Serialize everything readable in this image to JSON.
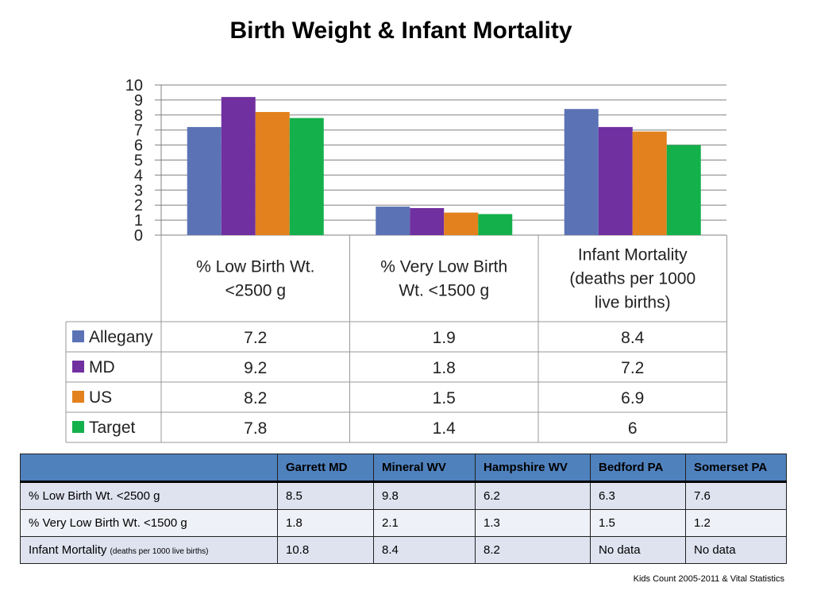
{
  "slide": {
    "title": "Birth Weight & Infant Mortality",
    "source": "Kids Count 2005-2011 & Vital Statistics"
  },
  "colors": {
    "Allegany": "#5b73b5",
    "MD": "#7030a0",
    "US": "#e2811d",
    "Target": "#14b04b",
    "gridline": "#808080",
    "table_header": "#4f81bd"
  },
  "chart_data": {
    "type": "bar",
    "categories": [
      "% Low Birth Wt. <2500 g",
      "% Very Low Birth Wt. <1500 g",
      "Infant Mortality (deaths per 1000 live births)"
    ],
    "category_lines": [
      [
        "% Low Birth Wt.",
        "<2500 g"
      ],
      [
        "% Very Low Birth",
        "Wt. <1500 g"
      ],
      [
        "Infant Mortality",
        "(deaths per 1000",
        "live births)"
      ]
    ],
    "series": [
      {
        "name": "Allegany",
        "values": [
          7.2,
          1.9,
          8.4
        ],
        "display": [
          "7.2",
          "1.9",
          "8.4"
        ]
      },
      {
        "name": "MD",
        "values": [
          9.2,
          1.8,
          7.2
        ],
        "display": [
          "9.2",
          "1.8",
          "7.2"
        ]
      },
      {
        "name": "US",
        "values": [
          8.2,
          1.5,
          6.9
        ],
        "display": [
          "8.2",
          "1.5",
          "6.9"
        ]
      },
      {
        "name": "Target",
        "values": [
          7.8,
          1.4,
          6
        ],
        "display": [
          "7.8",
          "1.4",
          "6"
        ]
      }
    ],
    "ylim": [
      0,
      10
    ],
    "yticks": [
      "0",
      "1",
      "2",
      "3",
      "4",
      "5",
      "6",
      "7",
      "8",
      "9",
      "10"
    ],
    "grid": true,
    "legend": "data table below chart"
  },
  "table": {
    "columns": [
      "",
      "Garrett MD",
      "Mineral WV",
      "Hampshire WV",
      "Bedford PA",
      "Somerset PA"
    ],
    "rows": [
      {
        "label": "% Low Birth Wt. <2500 g",
        "note": "",
        "values": [
          "8.5",
          "9.8",
          "6.2",
          "6.3",
          "7.6"
        ]
      },
      {
        "label": "% Very Low Birth Wt. <1500 g",
        "note": "",
        "values": [
          "1.8",
          "2.1",
          "1.3",
          "1.5",
          "1.2"
        ]
      },
      {
        "label": "Infant Mortality",
        "note": "(deaths per 1000 live births)",
        "values": [
          "10.8",
          "8.4",
          "8.2",
          "No data",
          "No data"
        ]
      }
    ]
  }
}
